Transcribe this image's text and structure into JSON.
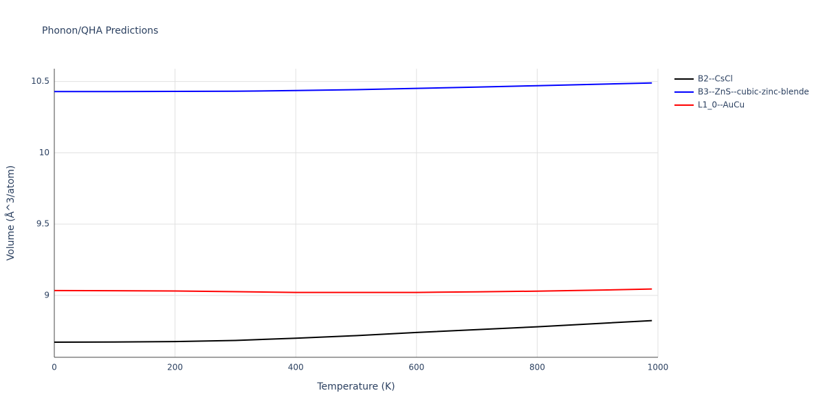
{
  "chart_data": {
    "type": "line",
    "title": "Phonon/QHA Predictions",
    "x_label": "Temperature (K)",
    "y_label": "Volume (Å^3/atom)",
    "x": [
      0,
      100,
      200,
      300,
      400,
      500,
      600,
      700,
      800,
      900,
      990
    ],
    "series": [
      {
        "name": "B2--CsCl",
        "color": "#000000",
        "values": [
          8.672,
          8.673,
          8.676,
          8.684,
          8.7,
          8.718,
          8.74,
          8.76,
          8.78,
          8.803,
          8.823
        ]
      },
      {
        "name": "B3--ZnS--cubic-zinc-blende",
        "color": "#0000ff",
        "values": [
          10.43,
          10.43,
          10.431,
          10.432,
          10.437,
          10.443,
          10.452,
          10.461,
          10.471,
          10.481,
          10.49
        ]
      },
      {
        "name": "L1_0--AuCu",
        "color": "#ff0000",
        "values": [
          9.034,
          9.033,
          9.031,
          9.026,
          9.021,
          9.021,
          9.021,
          9.025,
          9.03,
          9.037,
          9.045
        ]
      }
    ],
    "xlim": [
      0,
      1000
    ],
    "ylim": [
      8.566,
      10.59
    ],
    "xticks": [
      0,
      200,
      400,
      600,
      800,
      1000
    ],
    "yticks": [
      9,
      9.5,
      10,
      10.5
    ],
    "grid": true
  }
}
